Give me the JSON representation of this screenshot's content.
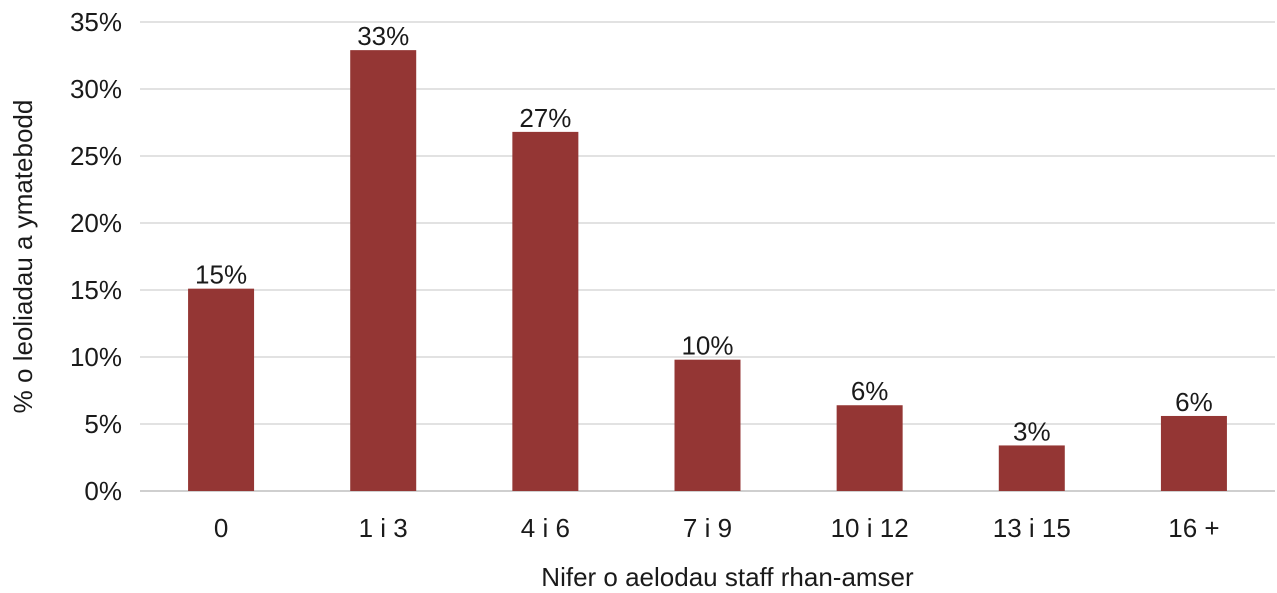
{
  "chart_data": {
    "type": "bar",
    "categories": [
      "0",
      "1 i 3",
      "4 i 6",
      "7 i 9",
      "10 i 12",
      "13 i 15",
      "16 +"
    ],
    "values": [
      15.1,
      32.9,
      26.8,
      9.8,
      6.4,
      3.4,
      5.6
    ],
    "data_labels": [
      "15%",
      "33%",
      "27%",
      "10%",
      "6%",
      "3%",
      "6%"
    ],
    "title": "",
    "xlabel": "Nifer o aelodau staff rhan-amser",
    "ylabel": "% o leoliadau a ymatebodd",
    "ylim": [
      0,
      35
    ],
    "yticks": [
      0,
      5,
      10,
      15,
      20,
      25,
      30,
      35
    ],
    "ytick_labels": [
      "0%",
      "5%",
      "10%",
      "15%",
      "20%",
      "25%",
      "30%",
      "35%"
    ],
    "grid": true,
    "legend": "none",
    "bar_color": "#943634"
  }
}
